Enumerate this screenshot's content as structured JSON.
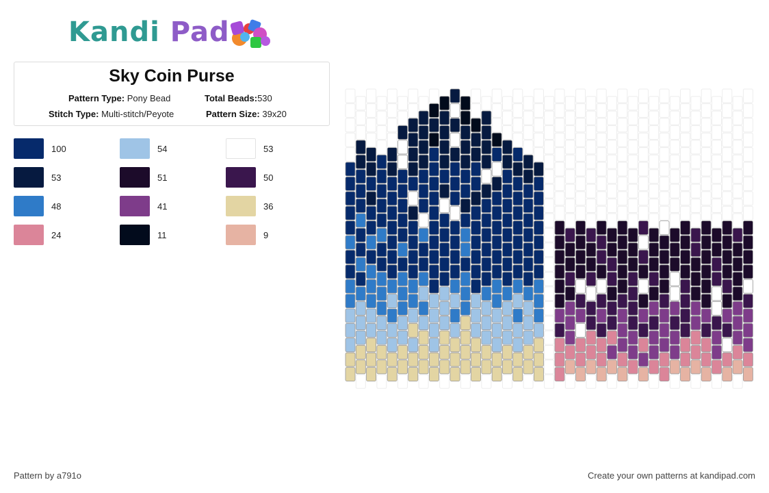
{
  "logo": {
    "part1": "Kandi",
    "part2": "Pad"
  },
  "pattern": {
    "title": "Sky Coin Purse",
    "type_label": "Pattern Type:",
    "type_value": "Pony Bead",
    "beads_label": "Total Beads:",
    "beads_value": "530",
    "stitch_label": "Stitch Type:",
    "stitch_value": "Multi-stitch/Peyote",
    "size_label": "Pattern Size:",
    "size_value": "39x20"
  },
  "palette": [
    {
      "color": "#062a6b",
      "count": "100"
    },
    {
      "color": "#9fc4e6",
      "count": "54"
    },
    {
      "color": "#ffffff",
      "count": "53"
    },
    {
      "color": "#061a40",
      "count": "53"
    },
    {
      "color": "#1c0b2a",
      "count": "51"
    },
    {
      "color": "#3a164d",
      "count": "50"
    },
    {
      "color": "#2f7bc8",
      "count": "48"
    },
    {
      "color": "#7e3c8a",
      "count": "41"
    },
    {
      "color": "#e3d5a3",
      "count": "36"
    },
    {
      "color": "#db8599",
      "count": "24"
    },
    {
      "color": "#020b1c",
      "count": "11"
    },
    {
      "color": "#e6b3a3",
      "count": "9"
    }
  ],
  "footer": {
    "left": "Pattern by a791o",
    "right": "Create your own patterns at kandipad.com"
  }
}
